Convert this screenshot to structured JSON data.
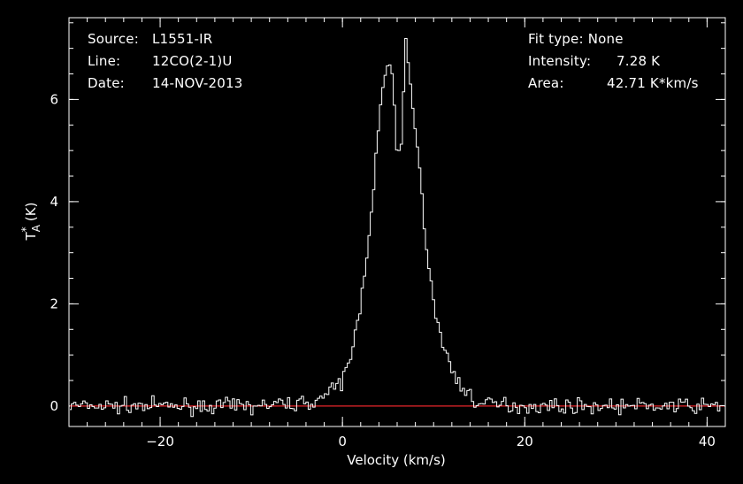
{
  "chart_data": {
    "type": "line",
    "xlabel": "Velocity (km/s)",
    "ylabel_main": "T",
    "ylabel_sub": "A",
    "ylabel_sup": "*",
    "ylabel_unit": "(K)",
    "xlim": [
      -30,
      42
    ],
    "ylim": [
      -0.4,
      7.6
    ],
    "xticks": [
      -20,
      0,
      20,
      40
    ],
    "xtick_labels": [
      "−20",
      "0",
      "20",
      "40"
    ],
    "yticks": [
      0,
      2,
      4,
      6
    ],
    "ytick_labels": [
      "0",
      "2",
      "4",
      "6"
    ],
    "x_minor_step": 2,
    "y_minor_step": 0.5,
    "baseline": {
      "y": 0,
      "color": "#e8262b"
    },
    "line_color": "#ffffff",
    "series": [
      {
        "x": [
          -30,
          -25,
          -20,
          -15,
          -10,
          -5,
          -3,
          -2,
          -1,
          0,
          1,
          2,
          3,
          4,
          4.5,
          5,
          5.5,
          6,
          6.5,
          7,
          7.5,
          8,
          9,
          10,
          11,
          12,
          13,
          14,
          15,
          20,
          25,
          30,
          35,
          42
        ],
        "y": [
          0.0,
          0.0,
          0.0,
          0.0,
          0.0,
          0.05,
          0.1,
          0.2,
          0.3,
          0.5,
          1.0,
          2.0,
          3.5,
          5.5,
          6.3,
          6.7,
          6.5,
          4.8,
          5.2,
          7.25,
          6.2,
          5.5,
          3.5,
          2.0,
          1.2,
          0.7,
          0.4,
          0.2,
          0.05,
          0.0,
          0.0,
          0.0,
          0.0,
          0.0
        ]
      }
    ]
  },
  "header": {
    "source_label": "Source:",
    "source_value": "L1551-IR",
    "line_label": "Line:",
    "line_value": "12CO(2-1)U",
    "date_label": "Date:",
    "date_value": "14-NOV-2013",
    "fit_label": "Fit type:",
    "fit_value": "None",
    "intensity_label": "Intensity:",
    "intensity_value": "7.28 K",
    "area_label": "Area:",
    "area_value": "42.71 K*km/s"
  }
}
